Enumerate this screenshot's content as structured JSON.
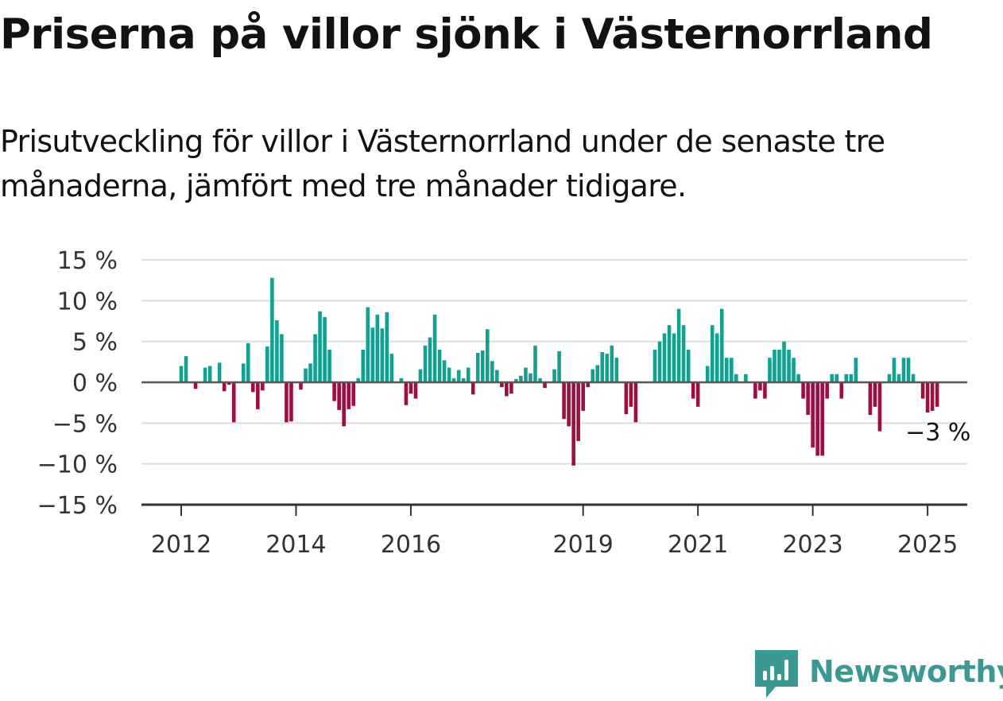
{
  "title": "Priserna på villor sjönk i Västernorrland",
  "subtitle": "Prisutveckling för villor i Västernorrland under de senaste tre månaderna, jämfört med tre månader tidigare.",
  "brand": {
    "name": "Newsworthy",
    "color": "#3a9a91"
  },
  "colors": {
    "positive": "#12a08f",
    "negative": "#9d0e43",
    "grid": "#dddddd",
    "axis": "#333333"
  },
  "chart_data": {
    "type": "bar",
    "title": "Priserna på villor sjönk i Västernorrland",
    "xlabel": "",
    "ylabel": "",
    "unit": "%",
    "ylim": [
      -15,
      15
    ],
    "yticks": [
      15,
      10,
      5,
      0,
      -5,
      -10,
      -15
    ],
    "ytick_labels": [
      "15 %",
      "10 %",
      "5 %",
      "0 %",
      "−5 %",
      "−10 %",
      "−15 %"
    ],
    "xticks": [
      2012,
      2014,
      2016,
      2019,
      2021,
      2023,
      2025
    ],
    "x_start": "2012-01",
    "x_end": "2025-02",
    "frequency": "monthly",
    "grid": true,
    "annotation": {
      "text": "−3 %",
      "target": "last"
    },
    "values": [
      2,
      3.2,
      0,
      -0.8,
      0,
      1.8,
      2,
      0,
      2.4,
      -1.1,
      -0.3,
      -4.9,
      0,
      2.3,
      4.8,
      -1.2,
      -3.3,
      -1,
      4.4,
      12.8,
      7.6,
      5.9,
      -4.9,
      -4.8,
      0,
      -0.9,
      1.7,
      2.3,
      5.9,
      8.7,
      8,
      4,
      -2.3,
      -3.4,
      -5.4,
      -3.3,
      -2.9,
      0.5,
      4,
      9.2,
      6.7,
      8.3,
      6.6,
      8.6,
      3.5,
      0,
      0.5,
      -2.8,
      -1.4,
      -2,
      1.6,
      4.5,
      5.5,
      8.3,
      4,
      2.7,
      1.8,
      0.5,
      1.5,
      0.5,
      1.8,
      -1.5,
      3.6,
      3.9,
      6.5,
      2.6,
      1.5,
      -0.6,
      -1.7,
      -1.4,
      0.4,
      0.8,
      1.8,
      1.1,
      4.5,
      0.5,
      -0.7,
      0,
      1.6,
      3.8,
      -4.5,
      -5.4,
      -10.2,
      -7.2,
      -3.5,
      -0.6,
      1.6,
      2.1,
      3.7,
      3.5,
      4.5,
      3,
      0,
      -3.9,
      -3,
      -4.9,
      0,
      0,
      0,
      4,
      5,
      6,
      7,
      6,
      9,
      7,
      4,
      -2,
      -3,
      0,
      2,
      7,
      6,
      9,
      3,
      3,
      1,
      0,
      1,
      0,
      -2,
      -1,
      -2,
      3,
      4,
      4,
      5,
      4,
      3,
      1,
      -2,
      -4,
      -8,
      -9,
      -9,
      -2,
      1,
      1,
      -2,
      1,
      1,
      3,
      0,
      0,
      -4,
      -3,
      -6,
      0,
      1,
      3,
      1,
      3,
      3,
      1,
      0,
      -2,
      -3.7,
      -3.5,
      -3
    ]
  }
}
